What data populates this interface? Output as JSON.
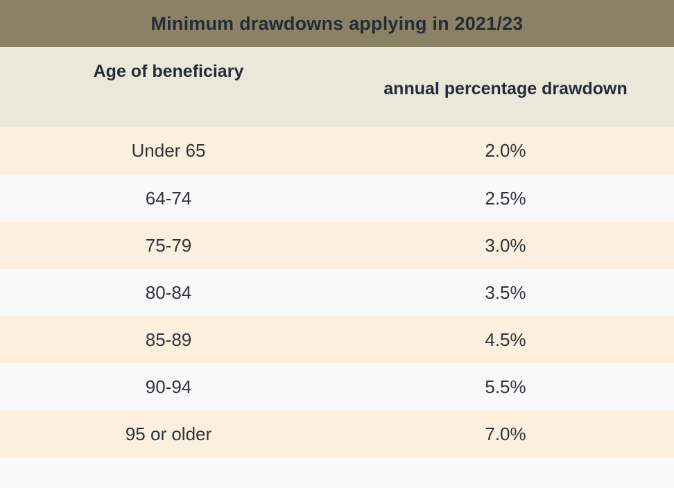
{
  "title_bar": {
    "title": "Minimum drawdowns applying in 2021/23"
  },
  "table": {
    "columns": [
      "Age of beneficiary",
      "annual percentage drawdown"
    ],
    "rows": [
      {
        "age": "Under 65",
        "drawdown": "2.0%"
      },
      {
        "age": "64-74",
        "drawdown": "2.5%"
      },
      {
        "age": "75-79",
        "drawdown": "3.0%"
      },
      {
        "age": "80-84",
        "drawdown": "3.5%"
      },
      {
        "age": "85-89",
        "drawdown": "4.5%"
      },
      {
        "age": "90-94",
        "drawdown": "5.5%"
      },
      {
        "age": "95 or older",
        "drawdown": "7.0%"
      }
    ]
  },
  "colors": {
    "title_bar_bg": "#8b8166",
    "header_bg": "#e9e8db",
    "row_odd_bg": "#fcefdd",
    "row_even_bg": "#f9f9f9",
    "title_text": "#262c35",
    "cell_text": "#2f333a"
  },
  "chart_data": {
    "type": "table",
    "title": "Minimum drawdowns applying in 2021/23",
    "columns": [
      "Age of beneficiary",
      "annual percentage drawdown"
    ],
    "categories": [
      "Under 65",
      "64-74",
      "75-79",
      "80-84",
      "85-89",
      "90-94",
      "95 or older"
    ],
    "values_percent": [
      2.0,
      2.5,
      3.0,
      3.5,
      4.5,
      5.5,
      7.0
    ]
  }
}
